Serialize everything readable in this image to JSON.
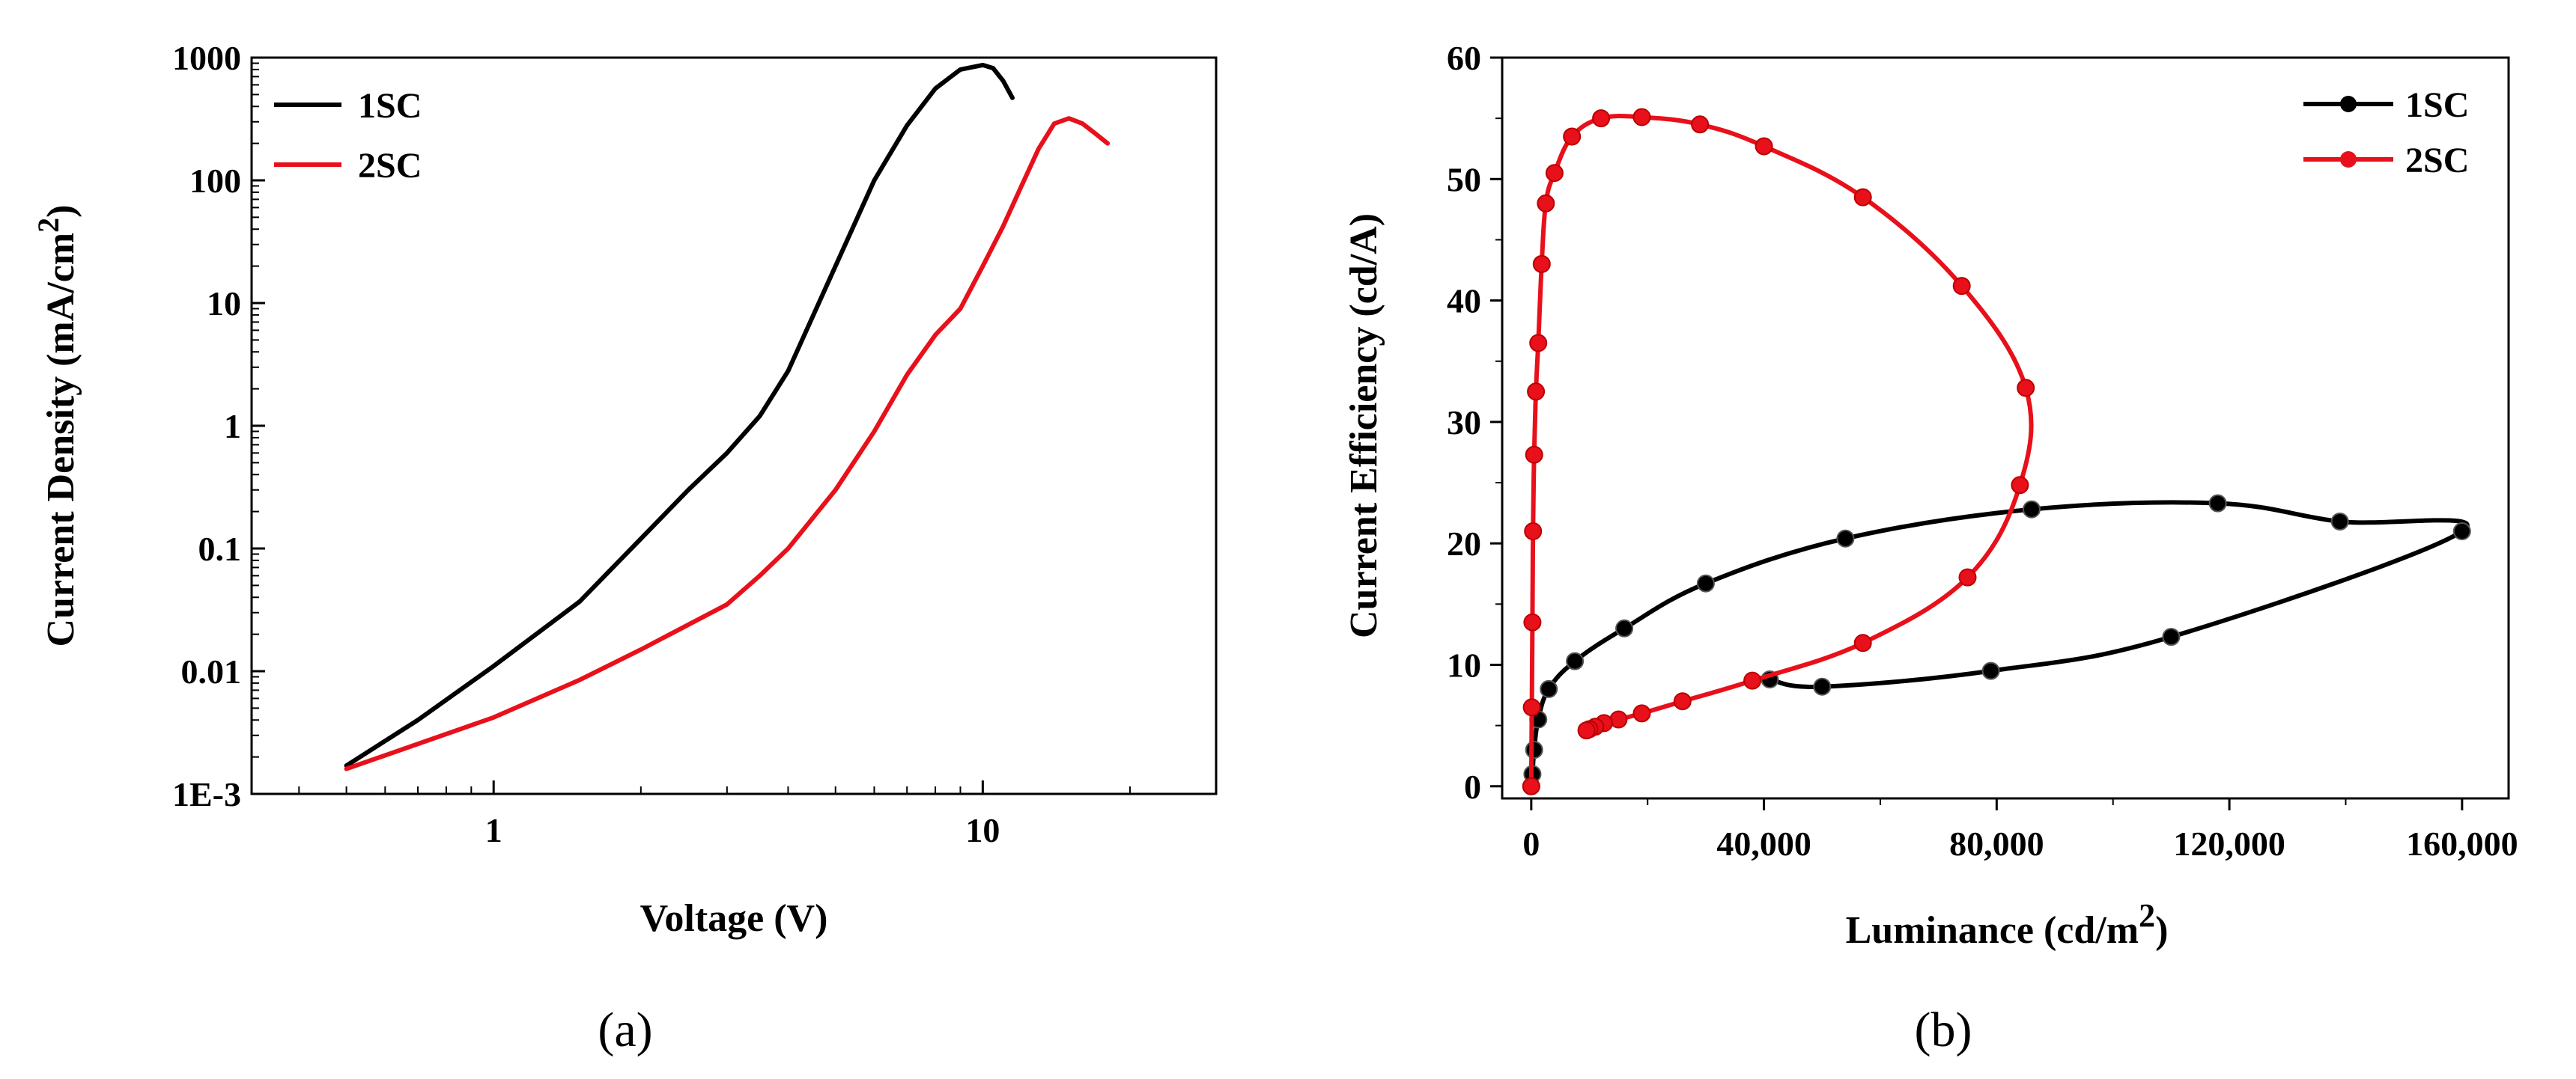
{
  "chart_data": [
    {
      "type": "line",
      "panel": "a",
      "caption": "(a)",
      "xlabel": "Voltage (V)",
      "ylabel": "Current Density (mA/cm",
      "ylabel_sup": "2",
      "ylabel_close": ")",
      "xscale": "log",
      "yscale": "log",
      "xlim": [
        0.32,
        30
      ],
      "ylim": [
        0.001,
        1000
      ],
      "xticks": [
        1,
        10
      ],
      "xtick_labels": [
        "1",
        "10"
      ],
      "yticks": [
        0.001,
        0.01,
        0.1,
        1,
        10,
        100,
        1000
      ],
      "ytick_labels": [
        "1E-3",
        "0.01",
        "0.1",
        "1",
        "10",
        "100",
        "1000"
      ],
      "legend_position": "top-left",
      "series": [
        {
          "name": "1SC",
          "color": "#000000",
          "x": [
            0.5,
            0.7,
            1.0,
            1.5,
            2.0,
            2.5,
            3.0,
            3.5,
            4.0,
            5.0,
            6.0,
            7.0,
            8.0,
            9.0,
            10.0,
            10.5,
            11.0,
            11.5
          ],
          "y": [
            0.0017,
            0.004,
            0.011,
            0.037,
            0.12,
            0.3,
            0.6,
            1.2,
            2.8,
            20,
            100,
            280,
            560,
            800,
            870,
            820,
            650,
            470
          ]
        },
        {
          "name": "2SC",
          "color": "#e8101a",
          "x": [
            0.5,
            1.0,
            1.5,
            2.0,
            3.0,
            3.5,
            4.0,
            5.0,
            6.0,
            7.0,
            8.0,
            9.0,
            10.0,
            11.0,
            12.0,
            13.0,
            14.0,
            15.0,
            16.0,
            17.0,
            18.0
          ],
          "y": [
            0.0016,
            0.0042,
            0.0085,
            0.015,
            0.035,
            0.06,
            0.1,
            0.3,
            0.9,
            2.6,
            5.5,
            9.0,
            20,
            42,
            90,
            180,
            290,
            320,
            290,
            240,
            200
          ]
        }
      ]
    },
    {
      "type": "line",
      "panel": "b",
      "caption": "(b)",
      "xlabel": "Luminance (cd/m",
      "xlabel_sup": "2",
      "xlabel_close": ")",
      "ylabel": "Current Efficiency (cd/A)",
      "xlim": [
        -5000,
        168000
      ],
      "ylim": [
        -1,
        60
      ],
      "xticks": [
        0,
        40000,
        80000,
        120000,
        160000
      ],
      "xtick_labels": [
        "0",
        "40,000",
        "80,000",
        "120,000",
        "160,000"
      ],
      "yticks": [
        0,
        10,
        20,
        30,
        40,
        50,
        60
      ],
      "ytick_labels": [
        "0",
        "10",
        "20",
        "30",
        "40",
        "50",
        "60"
      ],
      "legend_position": "top-right",
      "series": [
        {
          "name": "1SC",
          "color": "#000000",
          "x": [
            0,
            200,
            500,
            1200,
            3000,
            7500,
            16000,
            30000,
            54000,
            86000,
            118000,
            139000,
            160000,
            110000,
            79000,
            50000,
            41000
          ],
          "y": [
            0,
            1,
            3,
            5.5,
            8,
            10.3,
            13,
            16.7,
            20.4,
            22.8,
            23.3,
            21.8,
            21,
            12.3,
            9.5,
            8.2,
            8.8
          ],
          "markers": true
        },
        {
          "name": "2SC",
          "color": "#e8101a",
          "x": [
            0,
            100,
            200,
            300,
            500,
            800,
            1200,
            1800,
            2500,
            4000,
            7000,
            12000,
            19000,
            29000,
            40000,
            57000,
            74000,
            85000,
            84000,
            75000,
            57000,
            38000,
            26000,
            19000,
            15000,
            12500,
            11000,
            10000,
            9500
          ],
          "y": [
            0,
            6.5,
            13.5,
            21,
            27.3,
            32.5,
            36.5,
            43,
            48,
            50.5,
            53.5,
            55,
            55.1,
            54.5,
            52.7,
            48.5,
            41.2,
            32.8,
            24.8,
            17.2,
            11.8,
            8.7,
            7,
            6,
            5.5,
            5.2,
            4.9,
            4.7,
            4.6
          ],
          "markers": true
        }
      ]
    }
  ]
}
